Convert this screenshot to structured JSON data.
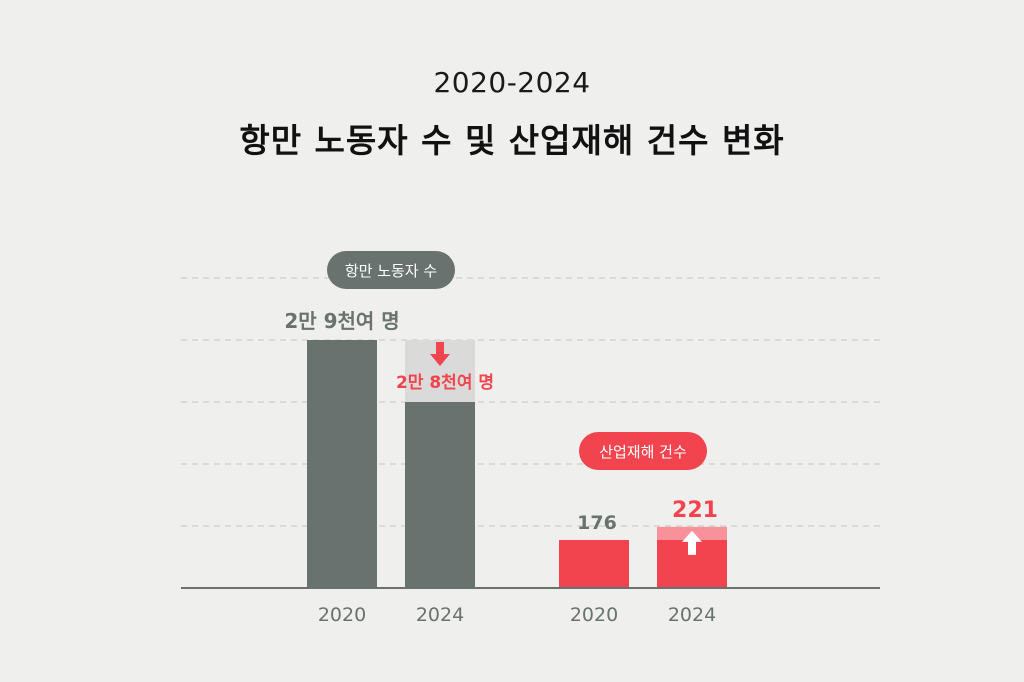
{
  "header": {
    "subtitle": "2020-2024",
    "title": "항만 노동자 수 및 산업재해 건수 변화"
  },
  "colors": {
    "background": "#efefee",
    "workers": "#6a7270",
    "workers_reduced": "#d9dad9",
    "accidents": "#f2444e",
    "accidents_increase": "#f7919a",
    "grid": "#c4c4c4",
    "axis": "#6a7270"
  },
  "chart_data": [
    {
      "type": "bar",
      "name": "항만 노동자 수",
      "categories": [
        "2020",
        "2024"
      ],
      "values": [
        29000,
        28000
      ],
      "value_labels": [
        "2만 9천여 명",
        "2만 8천여 명"
      ],
      "change": "decrease",
      "change_icon": "arrow-down-icon",
      "color": "#6a7270"
    },
    {
      "type": "bar",
      "name": "산업재해 건수",
      "categories": [
        "2020",
        "2024"
      ],
      "values": [
        176,
        221
      ],
      "value_labels": [
        "176",
        "221"
      ],
      "change": "increase",
      "change_icon": "arrow-up-icon",
      "color": "#f2444e"
    }
  ]
}
